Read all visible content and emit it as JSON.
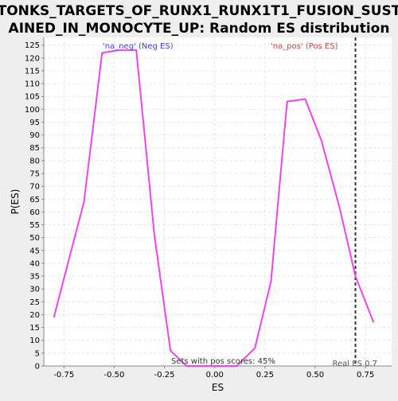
{
  "chart_data": {
    "type": "line",
    "title": "TONKS_TARGETS_OF_RUNX1_RUNX1T1_FUSION_SUSTAINED_IN_MONOCYTE_UP: Random ES distribution",
    "title_lines": [
      "TONKS_TARGETS_OF_RUNX1_RUNX1T1_FUSION_SUST",
      "AINED_IN_MONOCYTE_UP: Random ES distribution"
    ],
    "xlabel": "ES",
    "ylabel": "P(ES)",
    "xlim": [
      -0.85,
      0.88
    ],
    "ylim": [
      0,
      128
    ],
    "x_ticks": [
      -0.75,
      -0.5,
      -0.25,
      0.0,
      0.25,
      0.5,
      0.75
    ],
    "x_tick_labels": [
      "-0.75",
      "-0.50",
      "-0.25",
      "0.00",
      "0.25",
      "0.50",
      "0.75"
    ],
    "y_ticks": [
      0,
      5,
      10,
      15,
      20,
      25,
      30,
      35,
      40,
      45,
      50,
      55,
      60,
      65,
      70,
      75,
      80,
      85,
      90,
      95,
      100,
      105,
      110,
      115,
      120,
      125
    ],
    "grid": true,
    "series": [
      {
        "color": "#ee44ee",
        "x": [
          -0.8,
          -0.65,
          -0.56,
          -0.48,
          -0.39,
          -0.3,
          -0.22,
          -0.14,
          -0.05,
          0.03,
          0.11,
          0.2,
          0.28,
          0.36,
          0.45,
          0.53,
          0.62,
          0.7,
          0.79
        ],
        "y": [
          19,
          64,
          122,
          123,
          123,
          51,
          6,
          0,
          0,
          0,
          0,
          7,
          33,
          103,
          104,
          88,
          62,
          35,
          17
        ]
      }
    ],
    "reference_line": {
      "x": 0.7,
      "style": "dashed",
      "color": "#333333",
      "label": "Real ES 0.7"
    },
    "annotations": {
      "neg": {
        "text": "'na_neg' (Neg ES)",
        "color": "#4444cc"
      },
      "pos": {
        "text": "'na_pos' (Pos ES)",
        "color": "#cc4444"
      },
      "footer": {
        "text": "Sets with pos scores: 45%",
        "color": "#333333"
      }
    }
  }
}
